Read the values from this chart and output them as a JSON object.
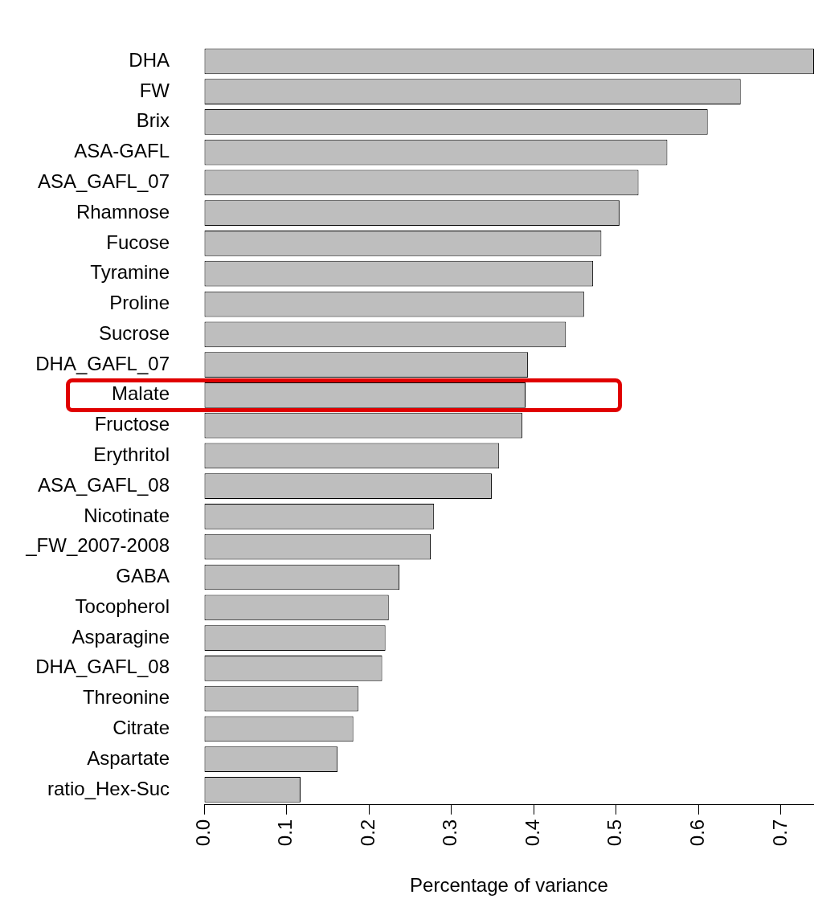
{
  "chart_data": {
    "type": "bar",
    "orientation": "horizontal",
    "xlabel": "Percentage of variance",
    "categories": [
      "DHA",
      "FW",
      "Brix",
      "ASA-GAFL",
      "ASA_GAFL_07",
      "Rhamnose",
      "Fucose",
      "Tyramine",
      "Proline",
      "Sucrose",
      "DHA_GAFL_07",
      "Malate",
      "Fructose",
      "Erythritol",
      "ASA_GAFL_08",
      "Nicotinate",
      "_FW_2007-2008",
      "GABA",
      "Tocopherol",
      "Asparagine",
      "DHA_GAFL_08",
      "Threonine",
      "Citrate",
      "Aspartate",
      "ratio_Hex-Suc"
    ],
    "values": [
      0.74,
      0.651,
      0.611,
      0.562,
      0.527,
      0.504,
      0.482,
      0.472,
      0.461,
      0.439,
      0.393,
      0.39,
      0.386,
      0.358,
      0.349,
      0.279,
      0.275,
      0.237,
      0.224,
      0.22,
      0.216,
      0.187,
      0.181,
      0.162,
      0.117
    ],
    "color": "#bebebe",
    "xlim": [
      0,
      0.74
    ],
    "xticks": [
      {
        "value": 0,
        "label": "0.0"
      },
      0.1,
      0.2,
      0.3,
      0.4,
      0.5,
      0.6,
      0.7
    ],
    "grid": false,
    "legend": false
  }
}
